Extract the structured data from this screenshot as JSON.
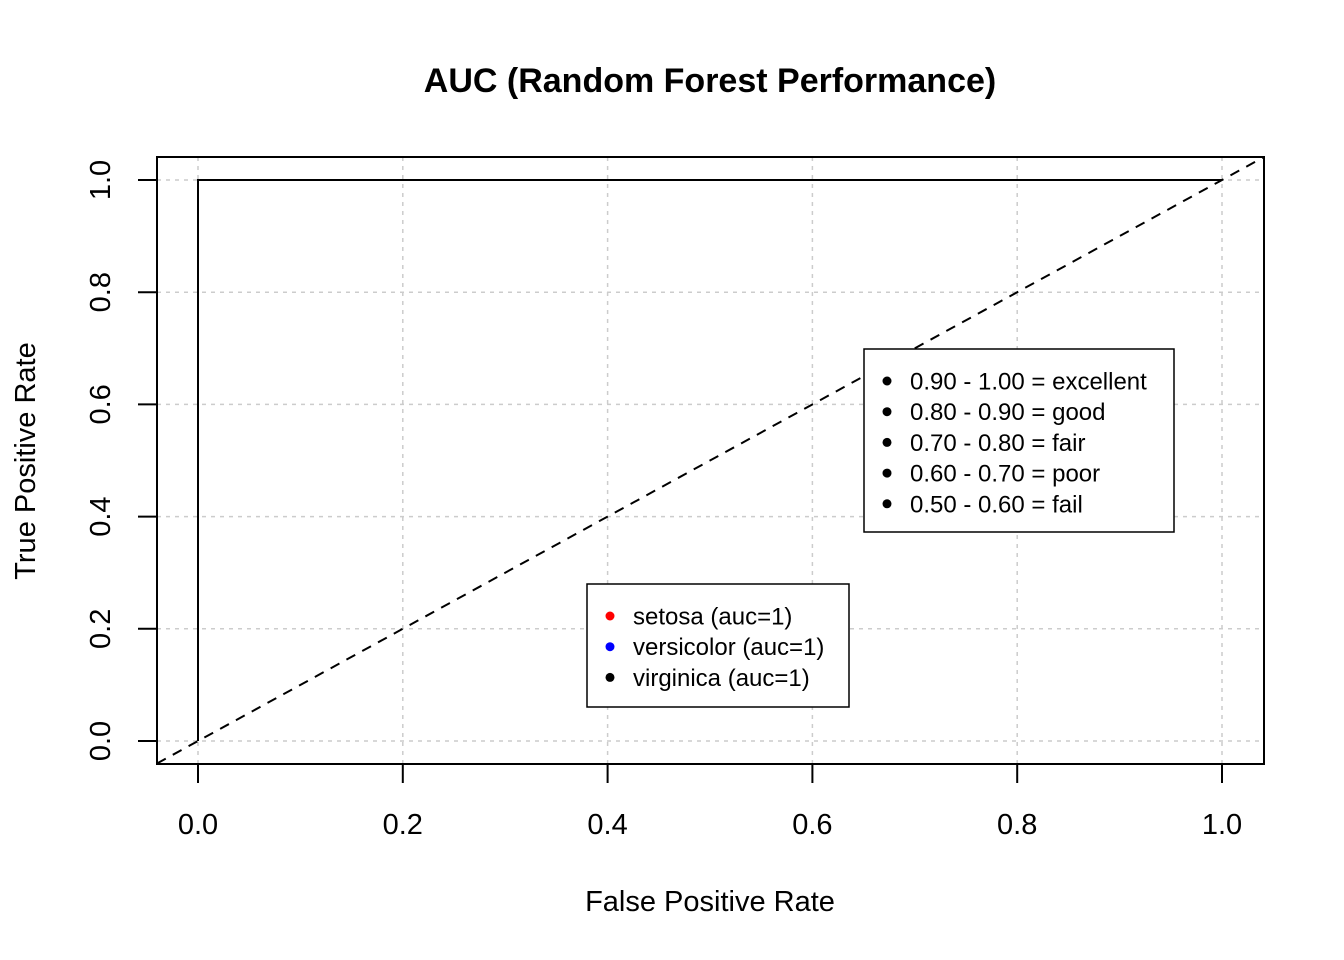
{
  "chart_data": {
    "type": "line",
    "title": "AUC (Random Forest Performance)",
    "xlabel": "False Positive Rate",
    "ylabel": "True Positive Rate",
    "xlim": [
      0,
      1
    ],
    "ylim": [
      0,
      1
    ],
    "x_ticks": [
      "0.0",
      "0.2",
      "0.4",
      "0.6",
      "0.8",
      "1.0"
    ],
    "y_ticks": [
      "0.0",
      "0.2",
      "0.4",
      "0.6",
      "0.8",
      "1.0"
    ],
    "tick_values": [
      0,
      0.2,
      0.4,
      0.6,
      0.8,
      1.0
    ],
    "grid": true,
    "diagonal_reference": true,
    "series": [
      {
        "name": "setosa (auc=1)",
        "color": "#ff0000",
        "x": [
          0,
          0,
          1
        ],
        "y": [
          0,
          1,
          1
        ]
      },
      {
        "name": "versicolor (auc=1)",
        "color": "#0000ff",
        "x": [
          0,
          0,
          1
        ],
        "y": [
          0,
          1,
          1
        ]
      },
      {
        "name": "virginica (auc=1)",
        "color": "#000000",
        "x": [
          0,
          0,
          1
        ],
        "y": [
          0,
          1,
          1
        ]
      }
    ],
    "legend_series": {
      "placement": "bottom-center",
      "entries": [
        "setosa (auc=1)",
        "versicolor (auc=1)",
        "virginica (auc=1)"
      ],
      "colors": [
        "#ff0000",
        "#0000ff",
        "#000000"
      ]
    },
    "legend_scale": {
      "placement": "center-right",
      "entries": [
        "0.90 - 1.00 = excellent",
        "0.80 - 0.90 = good",
        "0.70 - 0.80 = fair",
        "0.60 - 0.70 = poor",
        "0.50 - 0.60 = fail"
      ],
      "colors": [
        "#000000",
        "#000000",
        "#000000",
        "#000000",
        "#000000"
      ]
    }
  }
}
